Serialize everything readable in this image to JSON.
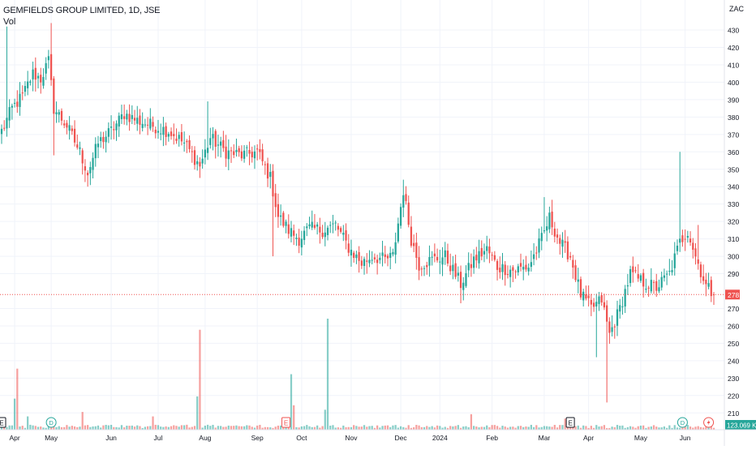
{
  "header": {
    "symbol_title": "GEMFIELDS GROUP LIMITED, 1D, JSE",
    "volume_label": "Vol",
    "currency": "ZAC"
  },
  "price_axis": {
    "ticks": [
      430,
      420,
      410,
      400,
      390,
      380,
      370,
      360,
      350,
      340,
      330,
      320,
      310,
      300,
      290,
      270,
      260,
      250,
      240,
      230,
      220,
      210
    ],
    "last_price_label": "278",
    "volume_label": "123.069 K"
  },
  "colors": {
    "up": "#26a69a",
    "down": "#ef5350",
    "grid": "#f0f3fa",
    "axis_text": "#131722",
    "last_price": "#ef5350",
    "event_badge_e": "#131722",
    "event_badge_e_red": "#ef5350",
    "event_badge_d": "#26a69a",
    "event_badge_split": "#ef5350"
  },
  "events": [
    {
      "type": "E",
      "date_index": 0,
      "icon": "earnings-icon"
    },
    {
      "type": "D",
      "date_index": 19,
      "icon": "dividend-icon"
    },
    {
      "type": "E",
      "date_index": 109,
      "icon": "earnings-icon-red"
    },
    {
      "type": "E",
      "date_index": 218,
      "icon": "earnings-icon"
    },
    {
      "type": "D",
      "date_index": 261,
      "icon": "dividend-icon"
    },
    {
      "type": "split",
      "date_index": 271,
      "icon": "lightning-icon"
    }
  ],
  "chart_data": {
    "type": "candlestick",
    "title": "GEMFIELDS GROUP LIMITED, 1D, JSE",
    "x_month_labels": [
      "Apr",
      "May",
      "Jun",
      "Jul",
      "Aug",
      "Sep",
      "Oct",
      "Nov",
      "Dec",
      "2024",
      "Feb",
      "Mar",
      "Apr",
      "May",
      "Jun"
    ],
    "x_month_label_index": [
      5,
      19,
      42,
      60,
      78,
      98,
      115,
      134,
      153,
      168,
      188,
      208,
      225,
      245,
      262
    ],
    "ylim": [
      205,
      437
    ],
    "last_price": 278,
    "last_volume": "123.069 K",
    "anchors": [
      {
        "i": 0,
        "close": 372
      },
      {
        "i": 4,
        "close": 385
      },
      {
        "i": 8,
        "close": 392
      },
      {
        "i": 12,
        "close": 405
      },
      {
        "i": 15,
        "close": 402
      },
      {
        "i": 18,
        "close": 412
      },
      {
        "i": 20,
        "close": 385
      },
      {
        "i": 25,
        "close": 375
      },
      {
        "i": 30,
        "close": 360
      },
      {
        "i": 33,
        "close": 348
      },
      {
        "i": 37,
        "close": 365
      },
      {
        "i": 42,
        "close": 372
      },
      {
        "i": 47,
        "close": 382
      },
      {
        "i": 52,
        "close": 378
      },
      {
        "i": 58,
        "close": 375
      },
      {
        "i": 64,
        "close": 372
      },
      {
        "i": 70,
        "close": 365
      },
      {
        "i": 76,
        "close": 352
      },
      {
        "i": 80,
        "close": 368
      },
      {
        "i": 86,
        "close": 360
      },
      {
        "i": 92,
        "close": 358
      },
      {
        "i": 98,
        "close": 360
      },
      {
        "i": 103,
        "close": 345
      },
      {
        "i": 106,
        "close": 323
      },
      {
        "i": 110,
        "close": 315
      },
      {
        "i": 114,
        "close": 310
      },
      {
        "i": 118,
        "close": 316
      },
      {
        "i": 123,
        "close": 315
      },
      {
        "i": 128,
        "close": 318
      },
      {
        "i": 133,
        "close": 305
      },
      {
        "i": 138,
        "close": 296
      },
      {
        "i": 142,
        "close": 300
      },
      {
        "i": 147,
        "close": 298
      },
      {
        "i": 150,
        "close": 300
      },
      {
        "i": 154,
        "close": 338
      },
      {
        "i": 157,
        "close": 310
      },
      {
        "i": 160,
        "close": 295
      },
      {
        "i": 165,
        "close": 298
      },
      {
        "i": 170,
        "close": 300
      },
      {
        "i": 176,
        "close": 284
      },
      {
        "i": 181,
        "close": 298
      },
      {
        "i": 186,
        "close": 304
      },
      {
        "i": 190,
        "close": 294
      },
      {
        "i": 196,
        "close": 292
      },
      {
        "i": 202,
        "close": 294
      },
      {
        "i": 207,
        "close": 310
      },
      {
        "i": 210,
        "close": 322
      },
      {
        "i": 214,
        "close": 308
      },
      {
        "i": 218,
        "close": 300
      },
      {
        "i": 222,
        "close": 278
      },
      {
        "i": 226,
        "close": 270
      },
      {
        "i": 230,
        "close": 275
      },
      {
        "i": 233,
        "close": 255
      },
      {
        "i": 237,
        "close": 270
      },
      {
        "i": 241,
        "close": 290
      },
      {
        "i": 246,
        "close": 285
      },
      {
        "i": 251,
        "close": 282
      },
      {
        "i": 256,
        "close": 290
      },
      {
        "i": 260,
        "close": 308
      },
      {
        "i": 263,
        "close": 315
      },
      {
        "i": 266,
        "close": 300
      },
      {
        "i": 270,
        "close": 283
      },
      {
        "i": 273,
        "close": 278
      }
    ],
    "spikes": [
      {
        "i": 2,
        "high": 432
      },
      {
        "i": 19,
        "high": 434
      },
      {
        "i": 20,
        "low": 358
      },
      {
        "i": 33,
        "low": 340
      },
      {
        "i": 76,
        "low": 345
      },
      {
        "i": 79,
        "high": 389
      },
      {
        "i": 104,
        "low": 300
      },
      {
        "i": 154,
        "high": 344
      },
      {
        "i": 176,
        "low": 273
      },
      {
        "i": 208,
        "high": 334
      },
      {
        "i": 228,
        "low": 242
      },
      {
        "i": 232,
        "low": 216
      },
      {
        "i": 260,
        "high": 360
      },
      {
        "i": 267,
        "high": 318
      }
    ],
    "volume_spikes": [
      {
        "i": 5,
        "v": 0.28
      },
      {
        "i": 6,
        "v": 0.55
      },
      {
        "i": 10,
        "v": 0.12
      },
      {
        "i": 31,
        "v": 0.16
      },
      {
        "i": 58,
        "v": 0.12
      },
      {
        "i": 76,
        "v": 0.9
      },
      {
        "i": 75,
        "v": 0.3
      },
      {
        "i": 111,
        "v": 0.5
      },
      {
        "i": 112,
        "v": 0.22
      },
      {
        "i": 125,
        "v": 1.0
      },
      {
        "i": 124,
        "v": 0.18
      },
      {
        "i": 180,
        "v": 0.14
      },
      {
        "i": 216,
        "v": 0.1
      }
    ],
    "bar_count": 274
  }
}
